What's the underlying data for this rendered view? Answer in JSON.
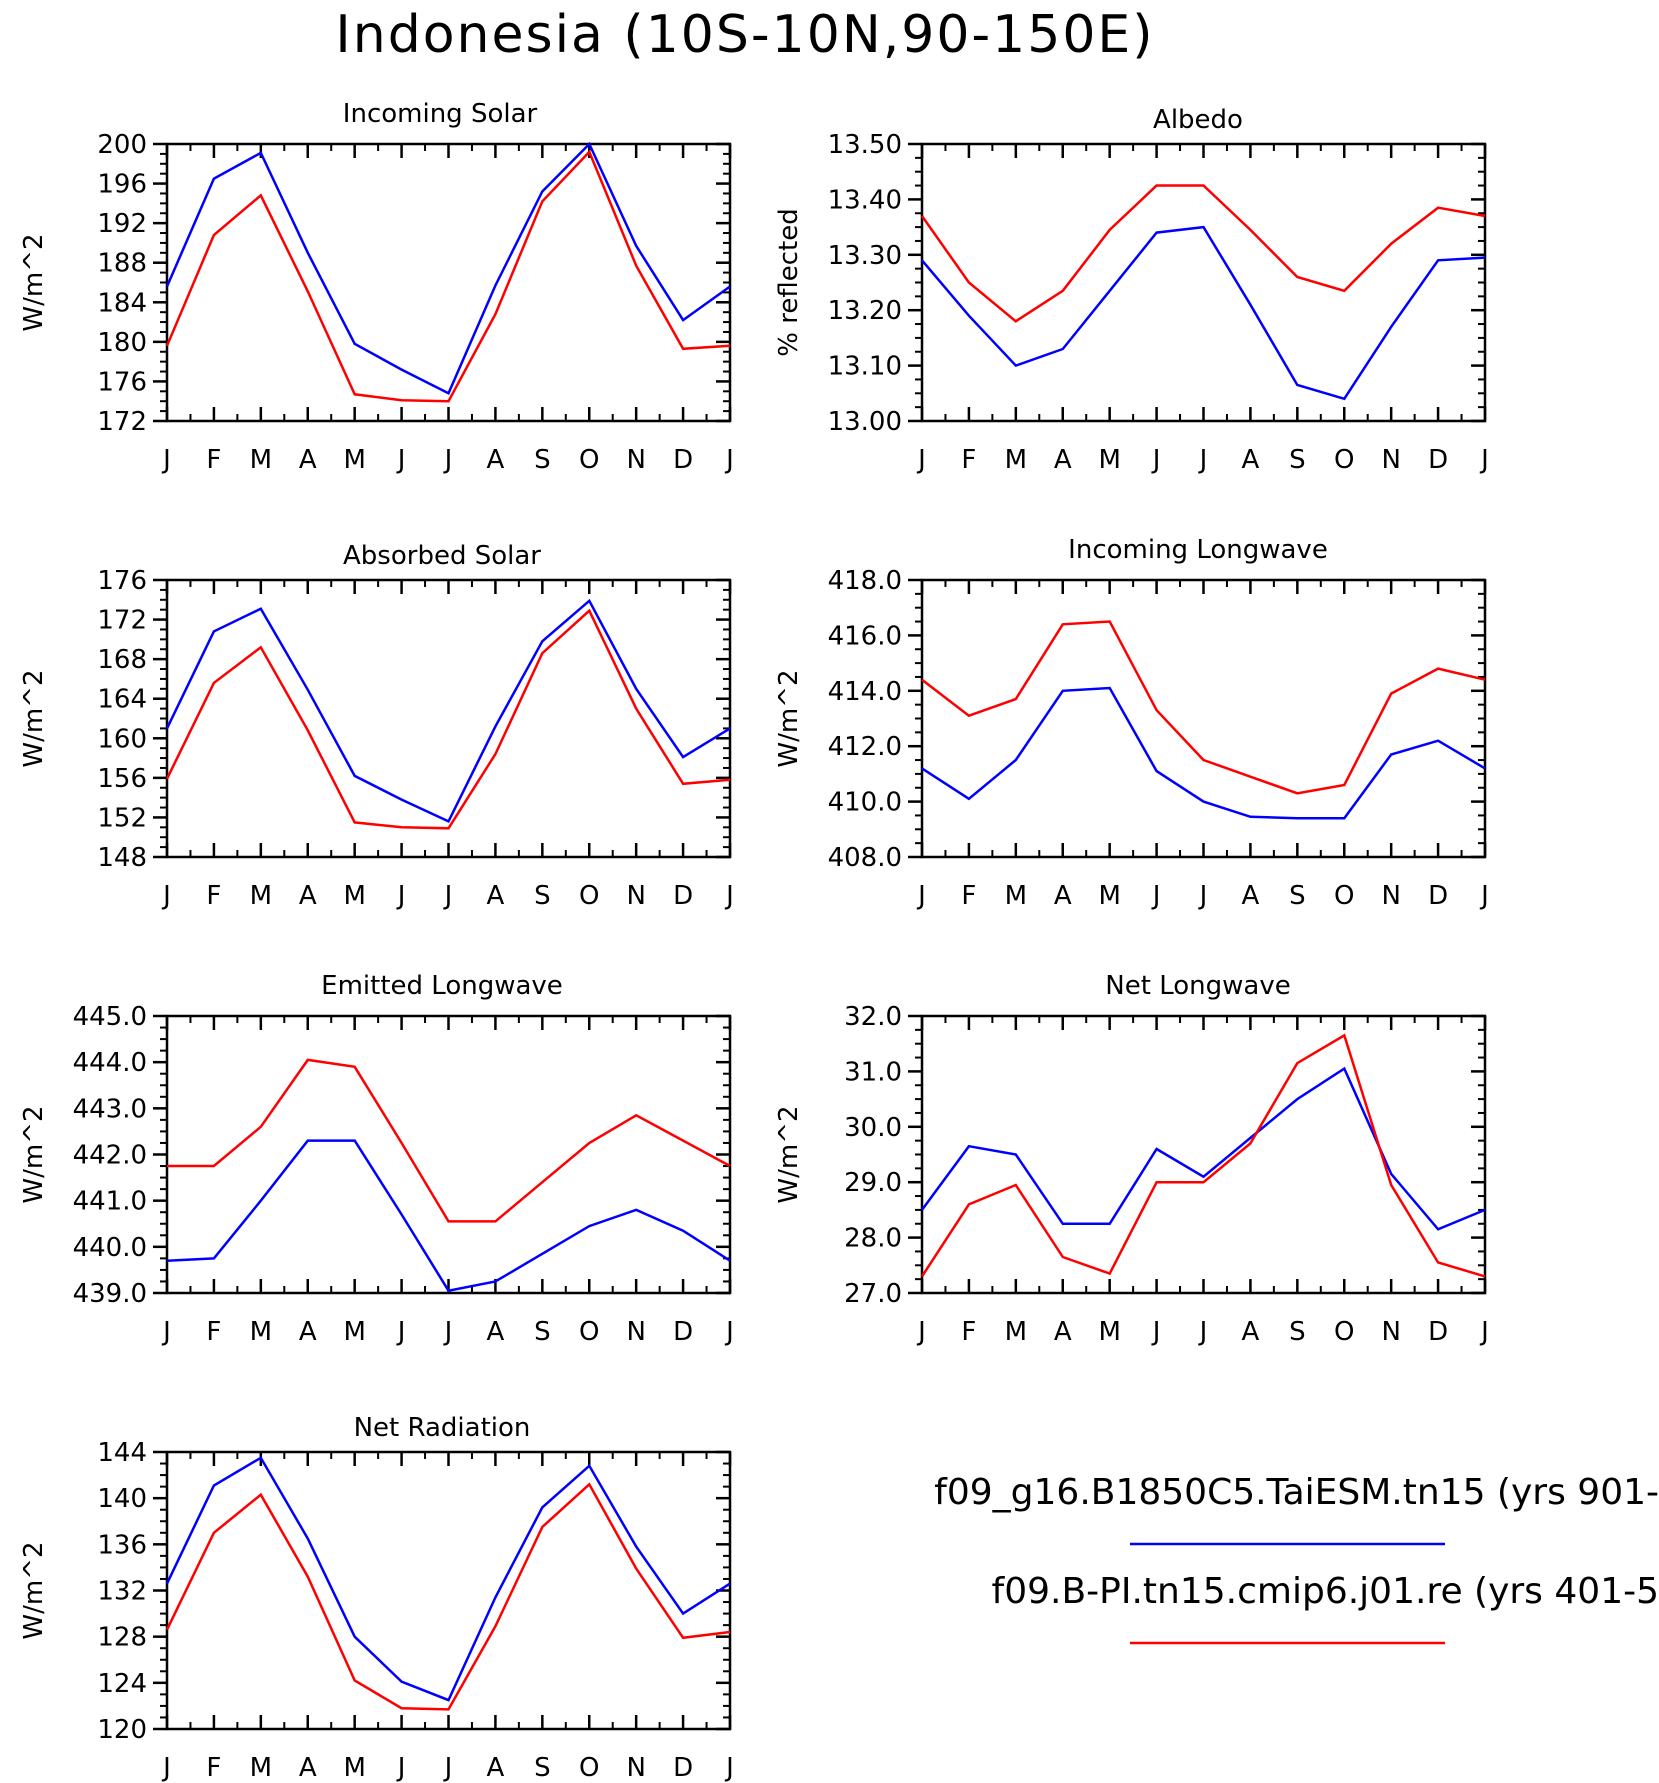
{
  "figure": {
    "title": "Indonesia (10S-10N,90-150E)",
    "legend": [
      {
        "label": "f09_g16.B1850C5.TaiESM.tn15 (yrs 901-",
        "color": "#0000ff"
      },
      {
        "label": "f09.B-PI.tn15.cmip6.j01.re (yrs 401-5",
        "color": "#ff0000"
      }
    ]
  },
  "chart_data": [
    {
      "type": "line",
      "title": "Incoming Solar",
      "ylabel": "W/m^2",
      "x": [
        "J",
        "F",
        "M",
        "A",
        "M",
        "J",
        "J",
        "A",
        "S",
        "O",
        "N",
        "D",
        "J"
      ],
      "ylim": [
        172,
        200
      ],
      "yticks": [
        "172",
        "176",
        "180",
        "184",
        "188",
        "192",
        "196",
        "200"
      ],
      "series": [
        {
          "name": "f09_g16.B1850C5.TaiESM.tn15 (yrs 901-",
          "color": "#0000ff",
          "values": [
            185.6,
            196.5,
            199.1,
            189.0,
            179.8,
            177.2,
            174.8,
            185.7,
            195.2,
            200.0,
            189.7,
            182.2,
            185.6
          ]
        },
        {
          "name": "f09.B-PI.tn15.cmip6.j01.re (yrs 401-5",
          "color": "#ff0000",
          "values": [
            179.6,
            190.8,
            194.8,
            185.1,
            174.7,
            174.1,
            174.0,
            182.8,
            194.2,
            199.2,
            187.7,
            179.3,
            179.6
          ]
        }
      ]
    },
    {
      "type": "line",
      "title": "Albedo",
      "ylabel": "% reflected",
      "x": [
        "J",
        "F",
        "M",
        "A",
        "M",
        "J",
        "J",
        "A",
        "S",
        "O",
        "N",
        "D",
        "J"
      ],
      "ylim": [
        13.0,
        13.5
      ],
      "yticks": [
        "13.00",
        "13.10",
        "13.20",
        "13.30",
        "13.40",
        "13.50"
      ],
      "series": [
        {
          "name": "f09_g16.B1850C5.TaiESM.tn15 (yrs 901-",
          "color": "#0000ff",
          "values": [
            13.29,
            13.19,
            13.1,
            13.13,
            13.235,
            13.34,
            13.35,
            13.21,
            13.065,
            13.04,
            13.17,
            13.29,
            13.295
          ]
        },
        {
          "name": "f09.B-PI.tn15.cmip6.j01.re (yrs 401-5",
          "color": "#ff0000",
          "values": [
            13.37,
            13.25,
            13.18,
            13.235,
            13.345,
            13.425,
            13.425,
            13.345,
            13.26,
            13.235,
            13.32,
            13.385,
            13.37
          ]
        }
      ]
    },
    {
      "type": "line",
      "title": "Absorbed Solar",
      "ylabel": "W/m^2",
      "x": [
        "J",
        "F",
        "M",
        "A",
        "M",
        "J",
        "J",
        "A",
        "S",
        "O",
        "N",
        "D",
        "J"
      ],
      "ylim": [
        148,
        176
      ],
      "yticks": [
        "148",
        "152",
        "156",
        "160",
        "164",
        "168",
        "172",
        "176"
      ],
      "series": [
        {
          "name": "f09_g16.B1850C5.TaiESM.tn15 (yrs 901-",
          "color": "#0000ff",
          "values": [
            161.0,
            170.8,
            173.1,
            164.9,
            156.2,
            153.8,
            151.6,
            161.2,
            169.8,
            173.9,
            165.0,
            158.1,
            161.0
          ]
        },
        {
          "name": "f09.B-PI.tn15.cmip6.j01.re (yrs 401-5",
          "color": "#ff0000",
          "values": [
            155.9,
            165.6,
            169.2,
            160.8,
            151.5,
            151.0,
            150.9,
            158.4,
            168.6,
            172.9,
            163.0,
            155.4,
            155.8
          ]
        }
      ]
    },
    {
      "type": "line",
      "title": "Incoming Longwave",
      "ylabel": "W/m^2",
      "x": [
        "J",
        "F",
        "M",
        "A",
        "M",
        "J",
        "J",
        "A",
        "S",
        "O",
        "N",
        "D",
        "J"
      ],
      "ylim": [
        408.0,
        418.0
      ],
      "yticks": [
        "408.0",
        "410.0",
        "412.0",
        "414.0",
        "416.0",
        "418.0"
      ],
      "series": [
        {
          "name": "f09_g16.B1850C5.TaiESM.tn15 (yrs 901-",
          "color": "#0000ff",
          "values": [
            411.2,
            410.1,
            411.5,
            414.0,
            414.1,
            411.1,
            410.0,
            409.45,
            409.4,
            409.4,
            411.7,
            412.2,
            411.2
          ]
        },
        {
          "name": "f09.B-PI.tn15.cmip6.j01.re (yrs 401-5",
          "color": "#ff0000",
          "values": [
            414.4,
            413.1,
            413.7,
            416.4,
            416.5,
            413.3,
            411.5,
            410.9,
            410.3,
            410.6,
            413.9,
            414.8,
            414.4
          ]
        }
      ]
    },
    {
      "type": "line",
      "title": "Emitted Longwave",
      "ylabel": "W/m^2",
      "x": [
        "J",
        "F",
        "M",
        "A",
        "M",
        "J",
        "J",
        "A",
        "S",
        "O",
        "N",
        "D",
        "J"
      ],
      "ylim": [
        439.0,
        445.0
      ],
      "yticks": [
        "439.0",
        "440.0",
        "441.0",
        "442.0",
        "443.0",
        "444.0",
        "445.0"
      ],
      "series": [
        {
          "name": "f09_g16.B1850C5.TaiESM.tn15 (yrs 901-",
          "color": "#0000ff",
          "values": [
            439.7,
            439.75,
            441.0,
            442.3,
            442.3,
            440.7,
            439.05,
            439.25,
            439.85,
            440.45,
            440.8,
            440.35,
            439.7
          ]
        },
        {
          "name": "f09.B-PI.tn15.cmip6.j01.re (yrs 401-5",
          "color": "#ff0000",
          "values": [
            441.75,
            441.75,
            442.6,
            444.05,
            443.9,
            442.25,
            440.55,
            440.55,
            441.4,
            442.25,
            442.85,
            442.3,
            441.75
          ]
        }
      ]
    },
    {
      "type": "line",
      "title": "Net Longwave",
      "ylabel": "W/m^2",
      "x": [
        "J",
        "F",
        "M",
        "A",
        "M",
        "J",
        "J",
        "A",
        "S",
        "O",
        "N",
        "D",
        "J"
      ],
      "ylim": [
        27.0,
        32.0
      ],
      "yticks": [
        "27.0",
        "28.0",
        "29.0",
        "30.0",
        "31.0",
        "32.0"
      ],
      "series": [
        {
          "name": "f09_g16.B1850C5.TaiESM.tn15 (yrs 901-",
          "color": "#0000ff",
          "values": [
            28.5,
            29.65,
            29.5,
            28.25,
            28.25,
            29.6,
            29.1,
            29.8,
            30.5,
            31.05,
            29.15,
            28.15,
            28.5
          ]
        },
        {
          "name": "f09.B-PI.tn15.cmip6.j01.re (yrs 401-5",
          "color": "#ff0000",
          "values": [
            27.3,
            28.6,
            28.95,
            27.65,
            27.35,
            29.0,
            29.0,
            29.7,
            31.15,
            31.65,
            28.95,
            27.55,
            27.3
          ]
        }
      ]
    },
    {
      "type": "line",
      "title": "Net Radiation",
      "ylabel": "W/m^2",
      "x": [
        "J",
        "F",
        "M",
        "A",
        "M",
        "J",
        "J",
        "A",
        "S",
        "O",
        "N",
        "D",
        "J"
      ],
      "ylim": [
        120,
        144
      ],
      "yticks": [
        "120",
        "124",
        "128",
        "132",
        "136",
        "140",
        "144"
      ],
      "series": [
        {
          "name": "f09_g16.B1850C5.TaiESM.tn15 (yrs 901-",
          "color": "#0000ff",
          "values": [
            132.6,
            141.1,
            143.5,
            136.5,
            128.0,
            124.1,
            122.5,
            131.4,
            139.2,
            142.8,
            135.8,
            130.0,
            132.6
          ]
        },
        {
          "name": "f09.B-PI.tn15.cmip6.j01.re (yrs 401-5",
          "color": "#ff0000",
          "values": [
            128.6,
            137.0,
            140.3,
            133.2,
            124.2,
            121.8,
            121.7,
            128.9,
            137.5,
            141.2,
            133.9,
            127.9,
            128.4
          ]
        }
      ]
    }
  ]
}
